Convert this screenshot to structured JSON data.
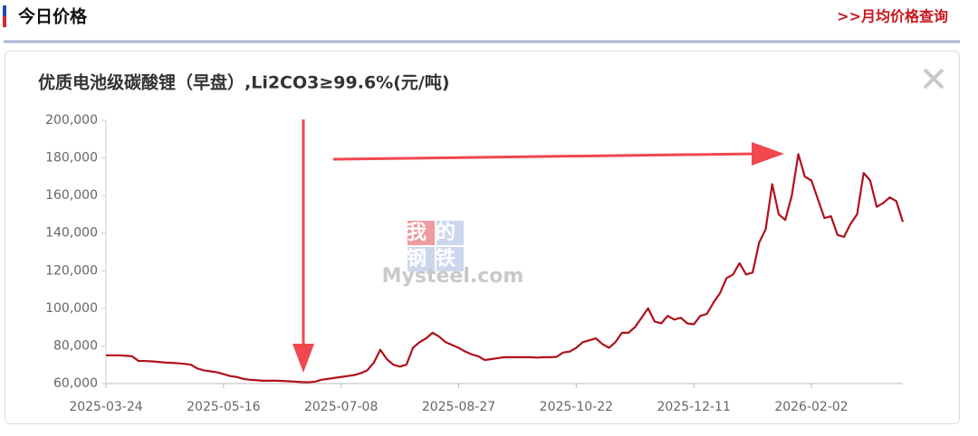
{
  "header": {
    "title": "今日价格",
    "link": ">>月均价格查询"
  },
  "watermark": {
    "top": "我的",
    "middle": "钢铁",
    "brand": "Mysteel.com"
  },
  "chart_data": {
    "type": "line",
    "title": "优质电池级碳酸锂（早盘）,Li2CO3≥99.6%(元/吨)",
    "color": "#b0101c",
    "categories": [
      "2025-03-24",
      null,
      null,
      null,
      null,
      null,
      null,
      null,
      null,
      null,
      null,
      null,
      null,
      null,
      null,
      null,
      null,
      null,
      "2025-05-16",
      null,
      null,
      null,
      null,
      null,
      null,
      null,
      null,
      null,
      null,
      null,
      null,
      null,
      null,
      null,
      null,
      null,
      "2025-07-08",
      null,
      null,
      null,
      null,
      null,
      null,
      null,
      null,
      null,
      null,
      null,
      null,
      null,
      null,
      null,
      null,
      null,
      "2025-08-27",
      null,
      null,
      null,
      null,
      null,
      null,
      null,
      null,
      null,
      null,
      null,
      null,
      null,
      null,
      null,
      null,
      null,
      "2025-10-22",
      null,
      null,
      null,
      null,
      null,
      null,
      null,
      null,
      null,
      null,
      null,
      null,
      null,
      null,
      null,
      null,
      null,
      "2025-12-11",
      null,
      null,
      null,
      null,
      null,
      null,
      null,
      null,
      null,
      null,
      null,
      null,
      null,
      null,
      null,
      null,
      null,
      "2026-02-02",
      null,
      null,
      null,
      null,
      null,
      null,
      null,
      null,
      null,
      null,
      null,
      null,
      null,
      null
    ],
    "values": [
      75000,
      75000,
      75000,
      74800,
      74500,
      72000,
      72000,
      71800,
      71500,
      71200,
      71000,
      70800,
      70500,
      70000,
      68000,
      67000,
      66500,
      66000,
      65000,
      64000,
      63500,
      62500,
      62000,
      61800,
      61500,
      61500,
      61500,
      61400,
      61200,
      61000,
      60800,
      60700,
      61000,
      62000,
      62500,
      63000,
      63500,
      64000,
      64500,
      65500,
      67000,
      71000,
      78000,
      73000,
      70000,
      69000,
      70000,
      79000,
      82000,
      84000,
      87000,
      85000,
      82000,
      80500,
      79000,
      77000,
      75500,
      74500,
      72500,
      73000,
      73500,
      74000,
      74000,
      74000,
      74000,
      74000,
      73800,
      74000,
      74000,
      74200,
      76500,
      77000,
      79000,
      82000,
      83000,
      84000,
      81000,
      79000,
      82000,
      87000,
      87000,
      90000,
      95000,
      100000,
      93000,
      92000,
      96000,
      94000,
      95000,
      92000,
      91500,
      96000,
      97000,
      103000,
      108000,
      116000,
      118000,
      124000,
      118000,
      119000,
      135000,
      142000,
      166000,
      150000,
      147000,
      160000,
      182000,
      170000,
      168000,
      158000,
      148000,
      149000,
      139000,
      138000,
      145000,
      150000,
      172000,
      168000,
      154000,
      156000,
      159000,
      157000,
      146000
    ],
    "ylim": [
      60000,
      200000
    ],
    "yticks": [
      {
        "value": 60000,
        "label": "60,000"
      },
      {
        "value": 80000,
        "label": "80,000"
      },
      {
        "value": 100000,
        "label": "100,000"
      },
      {
        "value": 120000,
        "label": "120,000"
      },
      {
        "value": 140000,
        "label": "140,000"
      },
      {
        "value": 160000,
        "label": "160,000"
      },
      {
        "value": 180000,
        "label": "180,000"
      },
      {
        "value": 200000,
        "label": "200,000"
      }
    ],
    "grid": false
  }
}
